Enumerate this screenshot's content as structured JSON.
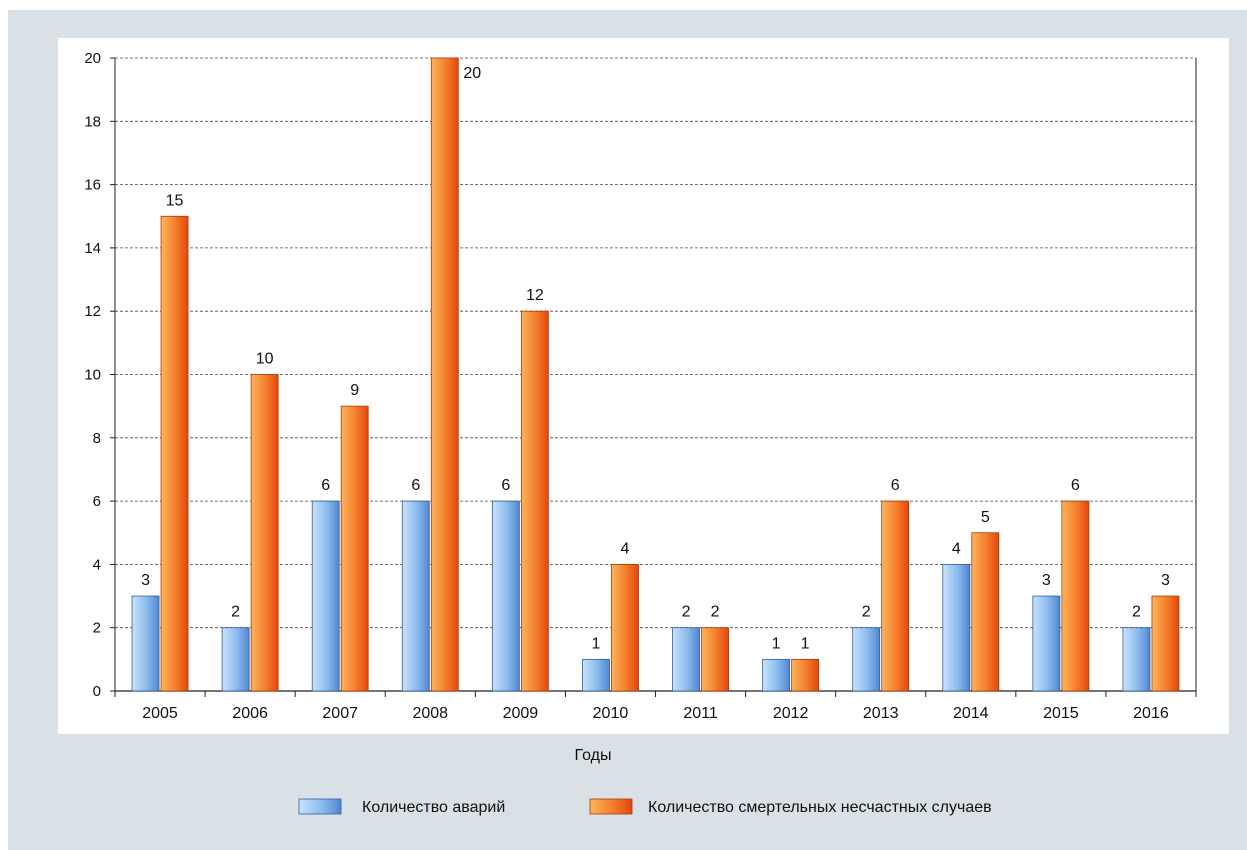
{
  "chart_data": {
    "type": "bar",
    "categories": [
      "2005",
      "2006",
      "2007",
      "2008",
      "2009",
      "2010",
      "2011",
      "2012",
      "2013",
      "2014",
      "2015",
      "2016"
    ],
    "series": [
      {
        "name": "Количество аварий",
        "color": "#74a9e8",
        "values": [
          3,
          2,
          6,
          6,
          6,
          1,
          2,
          1,
          2,
          4,
          3,
          2
        ]
      },
      {
        "name": "Количество смертельных несчастных случаев",
        "color": "#f16a1c",
        "values": [
          15,
          10,
          9,
          20,
          12,
          4,
          2,
          1,
          6,
          5,
          6,
          3
        ]
      }
    ],
    "xlabel": "Годы",
    "ylabel": "",
    "ylim": [
      0,
      20
    ],
    "yticks": [
      0,
      2,
      4,
      6,
      8,
      10,
      12,
      14,
      16,
      18,
      20
    ],
    "grid": true,
    "grid_style": "dashed",
    "legend_position": "bottom",
    "data_labels": true
  }
}
